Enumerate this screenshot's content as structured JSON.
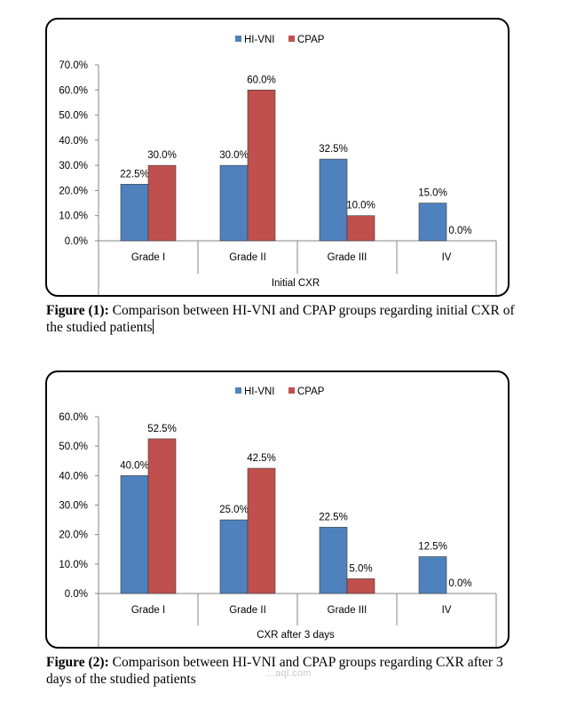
{
  "colors": {
    "hivni": "#4f81bd",
    "cpap": "#c0504d",
    "axis": "#868686"
  },
  "chart_data": [
    {
      "type": "bar",
      "title": "",
      "xlabel": "Initial CXR",
      "ylabel": "",
      "categories": [
        "Grade I",
        "Grade II",
        "Grade III",
        "IV"
      ],
      "series": [
        {
          "name": "HI-VNI",
          "values": [
            22.5,
            30.0,
            32.5,
            15.0
          ],
          "labels": [
            "22.5%",
            "30.0%",
            "32.5%",
            "15.0%"
          ]
        },
        {
          "name": "CPAP",
          "values": [
            30.0,
            60.0,
            10.0,
            0.0
          ],
          "labels": [
            "30.0%",
            "60.0%",
            "10.0%",
            "0.0%"
          ]
        }
      ],
      "ylim": [
        0,
        70
      ],
      "yticks": [
        "0.0%",
        "10.0%",
        "20.0%",
        "30.0%",
        "40.0%",
        "50.0%",
        "60.0%",
        "70.0%"
      ],
      "legend": "top-center",
      "grid": false
    },
    {
      "type": "bar",
      "title": "",
      "xlabel": "CXR after 3 days",
      "ylabel": "",
      "categories": [
        "Grade I",
        "Grade II",
        "Grade III",
        "IV"
      ],
      "series": [
        {
          "name": "HI-VNI",
          "values": [
            40.0,
            25.0,
            22.5,
            12.5
          ],
          "labels": [
            "40.0%",
            "25.0%",
            "22.5%",
            "12.5%"
          ]
        },
        {
          "name": "CPAP",
          "values": [
            52.5,
            42.5,
            5.0,
            0.0
          ],
          "labels": [
            "52.5%",
            "42.5%",
            "5.0%",
            "0.0%"
          ]
        }
      ],
      "ylim": [
        0,
        60
      ],
      "yticks": [
        "0.0%",
        "10.0%",
        "20.0%",
        "30.0%",
        "40.0%",
        "50.0%",
        "60.0%"
      ],
      "legend": "top-center",
      "grid": false
    }
  ],
  "captions": [
    {
      "label": "Figure (1):",
      "text": " Comparison between HI-VNI and CPAP groups regarding initial CXR of the studied patients"
    },
    {
      "label": "Figure (2):",
      "text": " Comparison between HI-VNI and CPAP groups regarding CXR after 3 days of the studied patients"
    }
  ],
  "watermark": "...aql.com"
}
